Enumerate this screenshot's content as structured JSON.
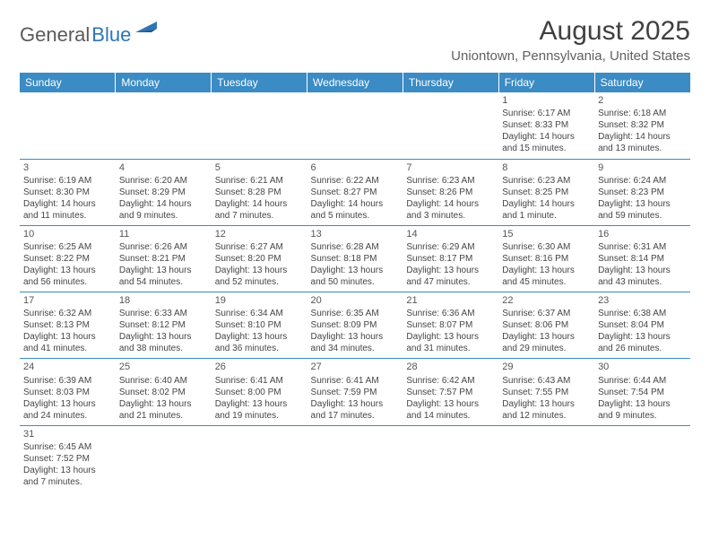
{
  "logo": {
    "general": "General",
    "blue": "Blue"
  },
  "title": "August 2025",
  "location": "Uniontown, Pennsylvania, United States",
  "colors": {
    "header_bg": "#3b8bc4",
    "header_text": "#ffffff",
    "cell_border": "#3b8bc4",
    "text": "#454545",
    "title_text": "#404040",
    "logo_gray": "#5a5a5a",
    "logo_blue": "#2e75b6"
  },
  "typography": {
    "title_fontsize": 30,
    "location_fontsize": 15,
    "header_fontsize": 12,
    "cell_fontsize": 10,
    "logo_fontsize": 22
  },
  "weekdays": [
    "Sunday",
    "Monday",
    "Tuesday",
    "Wednesday",
    "Thursday",
    "Friday",
    "Saturday"
  ],
  "weeks": [
    [
      null,
      null,
      null,
      null,
      null,
      {
        "n": "1",
        "sr": "Sunrise: 6:17 AM",
        "ss": "Sunset: 8:33 PM",
        "dl": "Daylight: 14 hours and 15 minutes."
      },
      {
        "n": "2",
        "sr": "Sunrise: 6:18 AM",
        "ss": "Sunset: 8:32 PM",
        "dl": "Daylight: 14 hours and 13 minutes."
      }
    ],
    [
      {
        "n": "3",
        "sr": "Sunrise: 6:19 AM",
        "ss": "Sunset: 8:30 PM",
        "dl": "Daylight: 14 hours and 11 minutes."
      },
      {
        "n": "4",
        "sr": "Sunrise: 6:20 AM",
        "ss": "Sunset: 8:29 PM",
        "dl": "Daylight: 14 hours and 9 minutes."
      },
      {
        "n": "5",
        "sr": "Sunrise: 6:21 AM",
        "ss": "Sunset: 8:28 PM",
        "dl": "Daylight: 14 hours and 7 minutes."
      },
      {
        "n": "6",
        "sr": "Sunrise: 6:22 AM",
        "ss": "Sunset: 8:27 PM",
        "dl": "Daylight: 14 hours and 5 minutes."
      },
      {
        "n": "7",
        "sr": "Sunrise: 6:23 AM",
        "ss": "Sunset: 8:26 PM",
        "dl": "Daylight: 14 hours and 3 minutes."
      },
      {
        "n": "8",
        "sr": "Sunrise: 6:23 AM",
        "ss": "Sunset: 8:25 PM",
        "dl": "Daylight: 14 hours and 1 minute."
      },
      {
        "n": "9",
        "sr": "Sunrise: 6:24 AM",
        "ss": "Sunset: 8:23 PM",
        "dl": "Daylight: 13 hours and 59 minutes."
      }
    ],
    [
      {
        "n": "10",
        "sr": "Sunrise: 6:25 AM",
        "ss": "Sunset: 8:22 PM",
        "dl": "Daylight: 13 hours and 56 minutes."
      },
      {
        "n": "11",
        "sr": "Sunrise: 6:26 AM",
        "ss": "Sunset: 8:21 PM",
        "dl": "Daylight: 13 hours and 54 minutes."
      },
      {
        "n": "12",
        "sr": "Sunrise: 6:27 AM",
        "ss": "Sunset: 8:20 PM",
        "dl": "Daylight: 13 hours and 52 minutes."
      },
      {
        "n": "13",
        "sr": "Sunrise: 6:28 AM",
        "ss": "Sunset: 8:18 PM",
        "dl": "Daylight: 13 hours and 50 minutes."
      },
      {
        "n": "14",
        "sr": "Sunrise: 6:29 AM",
        "ss": "Sunset: 8:17 PM",
        "dl": "Daylight: 13 hours and 47 minutes."
      },
      {
        "n": "15",
        "sr": "Sunrise: 6:30 AM",
        "ss": "Sunset: 8:16 PM",
        "dl": "Daylight: 13 hours and 45 minutes."
      },
      {
        "n": "16",
        "sr": "Sunrise: 6:31 AM",
        "ss": "Sunset: 8:14 PM",
        "dl": "Daylight: 13 hours and 43 minutes."
      }
    ],
    [
      {
        "n": "17",
        "sr": "Sunrise: 6:32 AM",
        "ss": "Sunset: 8:13 PM",
        "dl": "Daylight: 13 hours and 41 minutes."
      },
      {
        "n": "18",
        "sr": "Sunrise: 6:33 AM",
        "ss": "Sunset: 8:12 PM",
        "dl": "Daylight: 13 hours and 38 minutes."
      },
      {
        "n": "19",
        "sr": "Sunrise: 6:34 AM",
        "ss": "Sunset: 8:10 PM",
        "dl": "Daylight: 13 hours and 36 minutes."
      },
      {
        "n": "20",
        "sr": "Sunrise: 6:35 AM",
        "ss": "Sunset: 8:09 PM",
        "dl": "Daylight: 13 hours and 34 minutes."
      },
      {
        "n": "21",
        "sr": "Sunrise: 6:36 AM",
        "ss": "Sunset: 8:07 PM",
        "dl": "Daylight: 13 hours and 31 minutes."
      },
      {
        "n": "22",
        "sr": "Sunrise: 6:37 AM",
        "ss": "Sunset: 8:06 PM",
        "dl": "Daylight: 13 hours and 29 minutes."
      },
      {
        "n": "23",
        "sr": "Sunrise: 6:38 AM",
        "ss": "Sunset: 8:04 PM",
        "dl": "Daylight: 13 hours and 26 minutes."
      }
    ],
    [
      {
        "n": "24",
        "sr": "Sunrise: 6:39 AM",
        "ss": "Sunset: 8:03 PM",
        "dl": "Daylight: 13 hours and 24 minutes."
      },
      {
        "n": "25",
        "sr": "Sunrise: 6:40 AM",
        "ss": "Sunset: 8:02 PM",
        "dl": "Daylight: 13 hours and 21 minutes."
      },
      {
        "n": "26",
        "sr": "Sunrise: 6:41 AM",
        "ss": "Sunset: 8:00 PM",
        "dl": "Daylight: 13 hours and 19 minutes."
      },
      {
        "n": "27",
        "sr": "Sunrise: 6:41 AM",
        "ss": "Sunset: 7:59 PM",
        "dl": "Daylight: 13 hours and 17 minutes."
      },
      {
        "n": "28",
        "sr": "Sunrise: 6:42 AM",
        "ss": "Sunset: 7:57 PM",
        "dl": "Daylight: 13 hours and 14 minutes."
      },
      {
        "n": "29",
        "sr": "Sunrise: 6:43 AM",
        "ss": "Sunset: 7:55 PM",
        "dl": "Daylight: 13 hours and 12 minutes."
      },
      {
        "n": "30",
        "sr": "Sunrise: 6:44 AM",
        "ss": "Sunset: 7:54 PM",
        "dl": "Daylight: 13 hours and 9 minutes."
      }
    ],
    [
      {
        "n": "31",
        "sr": "Sunrise: 6:45 AM",
        "ss": "Sunset: 7:52 PM",
        "dl": "Daylight: 13 hours and 7 minutes."
      },
      null,
      null,
      null,
      null,
      null,
      null
    ]
  ]
}
